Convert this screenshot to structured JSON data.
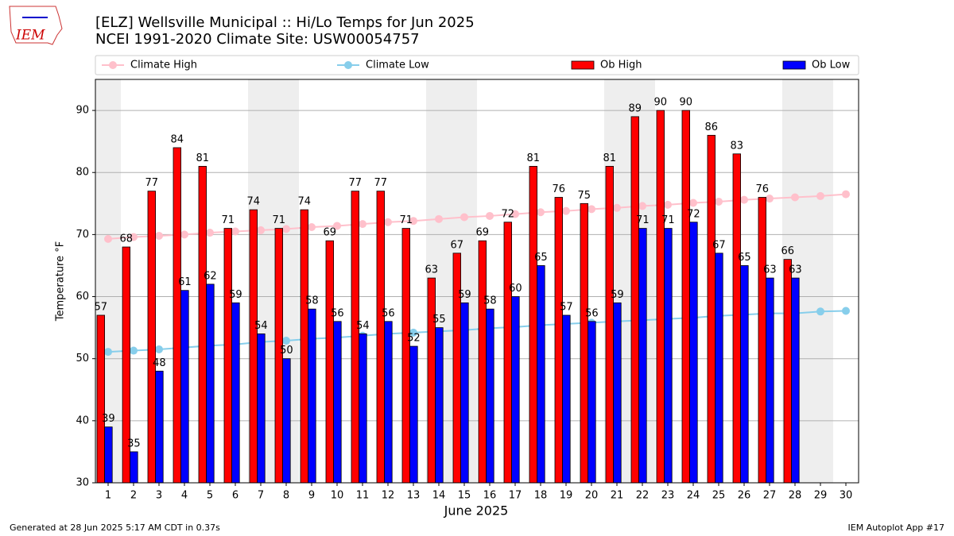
{
  "logo_text": "IEM",
  "footer_left": "Generated at 28 Jun 2025 5:17 AM CDT in 0.37s",
  "footer_right": "IEM Autoplot App #17",
  "chart_data": {
    "type": "bar",
    "title": "[ELZ] Wellsville Municipal :: Hi/Lo Temps for Jun 2025",
    "subtitle": "NCEI 1991-2020 Climate Site: USW00054757",
    "x_label": "June 2025",
    "y_label": "Temperature °F",
    "categories": [
      "1",
      "2",
      "3",
      "4",
      "5",
      "6",
      "7",
      "8",
      "9",
      "10",
      "11",
      "12",
      "13",
      "14",
      "15",
      "16",
      "17",
      "18",
      "19",
      "20",
      "21",
      "22",
      "23",
      "24",
      "25",
      "26",
      "27",
      "28",
      "29",
      "30"
    ],
    "ylim": [
      30,
      95
    ],
    "yticks": [
      30,
      40,
      50,
      60,
      70,
      80,
      90
    ],
    "grid": true,
    "legend": "top",
    "series": [
      {
        "name": "Climate High",
        "type": "line",
        "color": "#ffc0cb",
        "values": [
          69.3,
          69.6,
          69.8,
          70.0,
          70.3,
          70.5,
          70.7,
          70.9,
          71.2,
          71.4,
          71.7,
          72.0,
          72.2,
          72.5,
          72.8,
          73.0,
          73.3,
          73.6,
          73.8,
          74.1,
          74.3,
          74.6,
          74.8,
          75.1,
          75.3,
          75.6,
          75.8,
          76.0,
          76.2,
          76.5
        ]
      },
      {
        "name": "Climate Low",
        "type": "line",
        "color": "#87ceeb",
        "values": [
          51.1,
          51.3,
          51.5,
          51.8,
          52.1,
          52.3,
          52.7,
          52.9,
          53.2,
          53.4,
          53.7,
          54.0,
          54.2,
          54.4,
          54.6,
          54.9,
          55.1,
          55.4,
          55.6,
          55.8,
          56.0,
          56.2,
          56.4,
          56.6,
          56.9,
          57.1,
          57.3,
          57.3,
          57.6,
          57.7
        ]
      },
      {
        "name": "Ob High",
        "type": "bar",
        "color": "#ff0000",
        "values": [
          57,
          68,
          77,
          84,
          81,
          71,
          74,
          71,
          74,
          69,
          77,
          77,
          71,
          63,
          67,
          69,
          72,
          81,
          76,
          75,
          81,
          89,
          90,
          90,
          86,
          83,
          76,
          66,
          null,
          null
        ]
      },
      {
        "name": "Ob Low",
        "type": "bar",
        "color": "#0000ff",
        "values": [
          39,
          35,
          48,
          61,
          62,
          59,
          54,
          50,
          58,
          56,
          54,
          56,
          52,
          55,
          59,
          58,
          60,
          65,
          57,
          56,
          59,
          71,
          71,
          72,
          67,
          65,
          63,
          63,
          null,
          null
        ]
      }
    ]
  }
}
